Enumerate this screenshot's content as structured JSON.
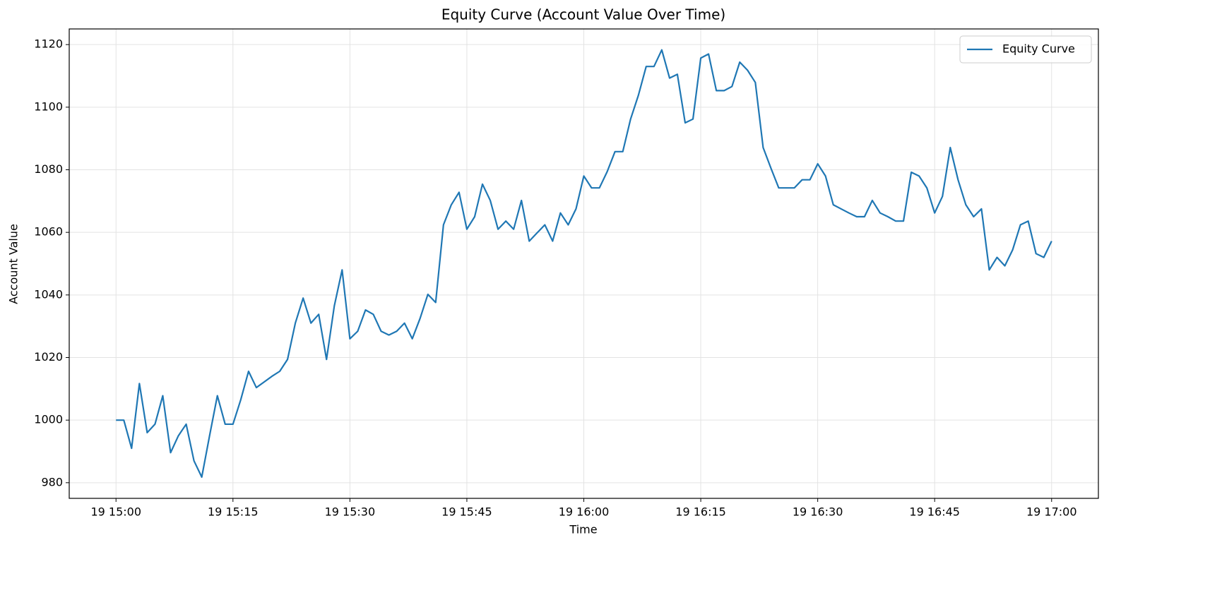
{
  "chart_data": {
    "type": "line",
    "title": "Equity Curve (Account Value Over Time)",
    "x_label": "Time",
    "y_label": "Account Value",
    "x": [
      "19 15:00",
      "19 15:01",
      "19 15:02",
      "19 15:03",
      "19 15:04",
      "19 15:05",
      "19 15:06",
      "19 15:07",
      "19 15:08",
      "19 15:09",
      "19 15:10",
      "19 15:11",
      "19 15:12",
      "19 15:13",
      "19 15:14",
      "19 15:15",
      "19 15:16",
      "19 15:17",
      "19 15:18",
      "19 15:19",
      "19 15:20",
      "19 15:21",
      "19 15:22",
      "19 15:23",
      "19 15:24",
      "19 15:25",
      "19 15:26",
      "19 15:27",
      "19 15:28",
      "19 15:29",
      "19 15:30",
      "19 15:31",
      "19 15:32",
      "19 15:33",
      "19 15:34",
      "19 15:35",
      "19 15:36",
      "19 15:37",
      "19 15:38",
      "19 15:39",
      "19 15:40",
      "19 15:41",
      "19 15:42",
      "19 15:43",
      "19 15:44",
      "19 15:45",
      "19 15:46",
      "19 15:47",
      "19 15:48",
      "19 15:49",
      "19 15:50",
      "19 15:51",
      "19 15:52",
      "19 15:53",
      "19 15:54",
      "19 15:55",
      "19 15:56",
      "19 15:57",
      "19 15:58",
      "19 15:59",
      "19 16:00",
      "19 16:01",
      "19 16:02",
      "19 16:03",
      "19 16:04",
      "19 16:05",
      "19 16:06",
      "19 16:07",
      "19 16:08",
      "19 16:09",
      "19 16:10",
      "19 16:11",
      "19 16:12",
      "19 16:13",
      "19 16:14",
      "19 16:15",
      "19 16:16",
      "19 16:17",
      "19 16:18",
      "19 16:19",
      "19 16:20",
      "19 16:21",
      "19 16:22",
      "19 16:23",
      "19 16:24",
      "19 16:25",
      "19 16:26",
      "19 16:27",
      "19 16:28",
      "19 16:29",
      "19 16:30",
      "19 16:31",
      "19 16:32",
      "19 16:33",
      "19 16:34",
      "19 16:35",
      "19 16:36",
      "19 16:37",
      "19 16:38",
      "19 16:39",
      "19 16:40",
      "19 16:41",
      "19 16:42",
      "19 16:43",
      "19 16:44",
      "19 16:45",
      "19 16:46",
      "19 16:47",
      "19 16:48",
      "19 16:49",
      "19 16:50",
      "19 16:51",
      "19 16:52",
      "19 16:53",
      "19 16:54",
      "19 16:55",
      "19 16:56",
      "19 16:57",
      "19 16:58",
      "19 16:59",
      "19 17:00"
    ],
    "series": [
      {
        "name": "Equity Curve",
        "color": "#1f77b4",
        "values": [
          1000,
          1000,
          991,
          1011.7,
          996,
          998.7,
          1007.8,
          989.6,
          995,
          998.7,
          987,
          981.8,
          995,
          1007.8,
          998.7,
          998.7,
          1006.5,
          1015.6,
          1010.4,
          1012.2,
          1014,
          1015.6,
          1019.4,
          1031,
          1039,
          1031,
          1033.8,
          1019.4,
          1036.5,
          1048,
          1026,
          1028.4,
          1035.2,
          1033.8,
          1028.4,
          1027.2,
          1028.4,
          1031,
          1026,
          1032.5,
          1040.2,
          1037.6,
          1062.4,
          1068.8,
          1072.8,
          1061,
          1065,
          1075.4,
          1070.2,
          1061,
          1063.6,
          1061,
          1070.2,
          1057.2,
          1059.8,
          1062.4,
          1057.2,
          1066.2,
          1062.4,
          1067.5,
          1078,
          1074.2,
          1074.2,
          1079.4,
          1085.8,
          1085.8,
          1096.2,
          1103.8,
          1113,
          1113,
          1118.3,
          1109.3,
          1110.5,
          1095,
          1096.2,
          1115.7,
          1117,
          1105.3,
          1105.3,
          1106.6,
          1114.4,
          1111.8,
          1107.9,
          1087.1,
          1080.5,
          1074.2,
          1074.2,
          1074.2,
          1076.8,
          1076.8,
          1081.9,
          1078,
          1068.8,
          1067.5,
          1066.2,
          1065,
          1065,
          1070.2,
          1066.2,
          1065,
          1063.6,
          1063.6,
          1079.2,
          1078,
          1074.2,
          1066.2,
          1071.5,
          1087.1,
          1076.8,
          1068.8,
          1065,
          1067.5,
          1048,
          1052,
          1049.3,
          1054.4,
          1062.4,
          1063.6,
          1053.2,
          1052,
          1057.2
        ]
      }
    ],
    "xlim": [
      "19 14:54",
      "19 17:06"
    ],
    "xticks": [
      "19 15:00",
      "19 15:15",
      "19 15:30",
      "19 15:45",
      "19 16:00",
      "19 16:15",
      "19 16:30",
      "19 16:45",
      "19 17:00"
    ],
    "ylim": [
      975,
      1125
    ],
    "yticks": [
      980,
      1000,
      1020,
      1040,
      1060,
      1080,
      1100,
      1120
    ],
    "grid": true,
    "legend": "upper right"
  }
}
